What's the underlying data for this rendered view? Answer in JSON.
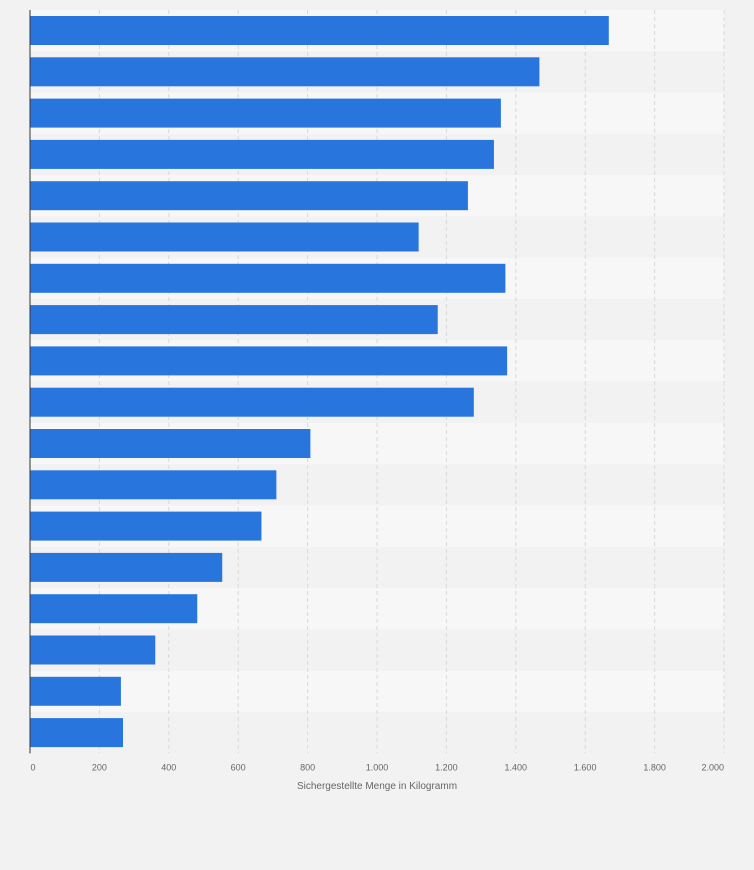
{
  "chart_data": {
    "type": "bar",
    "orientation": "horizontal",
    "categories": [
      "",
      "",
      "",
      "",
      "",
      "",
      "",
      "",
      "",
      "",
      "",
      "",
      "",
      "",
      "",
      "",
      "",
      ""
    ],
    "values": [
      1668,
      1468,
      1357,
      1337,
      1262,
      1120,
      1370,
      1175,
      1375,
      1279,
      808,
      710,
      667,
      554,
      482,
      361,
      262,
      268
    ],
    "title": "",
    "xlabel": "Sichergestellte Menge in Kilogramm",
    "ylabel": "",
    "xlim": [
      0,
      2000
    ],
    "x_ticks": [
      0,
      200,
      400,
      600,
      800,
      1000,
      1200,
      1400,
      1600,
      1800,
      2000
    ],
    "x_tick_labels": [
      "0",
      "200",
      "400",
      "600",
      "800",
      "1.000",
      "1.200",
      "1.400",
      "1.600",
      "1.800",
      "2.000"
    ],
    "grid": true,
    "legend": "none",
    "colors": {
      "bar": "#2876dd",
      "background": "#f2f2f2",
      "plot_band_light": "#f7f7f7",
      "plot_band_dark": "#f2f2f2",
      "grid": "#d9d9d9",
      "axis": "#333333",
      "text": "#666666"
    }
  }
}
